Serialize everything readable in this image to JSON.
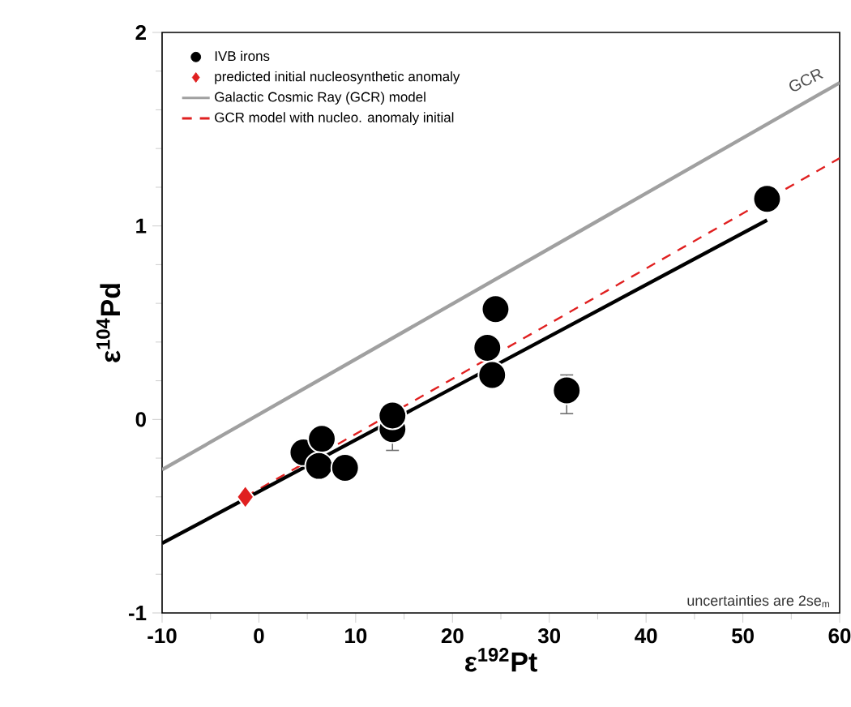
{
  "chart_data": {
    "type": "scatter",
    "xlabel": "ε$^{192}$Pt",
    "ylabel": "ε$^{104}$Pd",
    "xlim": [
      -10,
      60
    ],
    "xticks": [
      -10,
      0,
      10,
      20,
      30,
      40,
      50,
      60
    ],
    "ylim": [
      -1,
      2
    ],
    "yticks": [
      -1,
      0,
      1,
      2
    ],
    "legend": "top left",
    "annotations": [
      "uncertainties are 2se$_{m}$",
      {
        "text": "GCR",
        "x": 57,
        "y": 1.7
      }
    ],
    "series": [
      {
        "name": "IVB irons",
        "marker": "circle",
        "color": "#000000",
        "x": [
          4.6,
          6.5,
          6.2,
          8.9,
          13.8,
          13.8,
          23.6,
          24.1,
          24.45,
          31.8,
          52.5
        ],
        "values": [
          -0.17,
          -0.1,
          -0.24,
          -0.25,
          -0.05,
          0.02,
          0.37,
          0.23,
          0.57,
          0.15,
          1.14
        ],
        "errors": [
          null,
          null,
          null,
          null,
          [
            -0.16,
            0.06
          ],
          null,
          null,
          null,
          null,
          [
            0.03,
            0.23
          ],
          null
        ]
      },
      {
        "name": "predicted initial nucleosynthetic anomaly",
        "marker": "diamond",
        "color": "#e02020",
        "x": [
          -1.4
        ],
        "values": [
          -0.4
        ]
      },
      {
        "name": "Galactic Cosmic Ray (GCR) model",
        "type": "line",
        "line_style": "solid",
        "color": "#a0a0a0",
        "x": [
          -10,
          60
        ],
        "values": [
          -0.26,
          1.74
        ]
      },
      {
        "name": "GCR model with nucleo. anomaly initial",
        "type": "line",
        "line_style": "dashed",
        "color": "#e02020",
        "x": [
          -1.4,
          60
        ],
        "values": [
          -0.4,
          1.35
        ]
      },
      {
        "type": "line",
        "line_style": "solid",
        "color": "#000000",
        "x": [
          -10,
          52.5
        ],
        "values": [
          -0.64,
          1.03
        ]
      }
    ]
  }
}
